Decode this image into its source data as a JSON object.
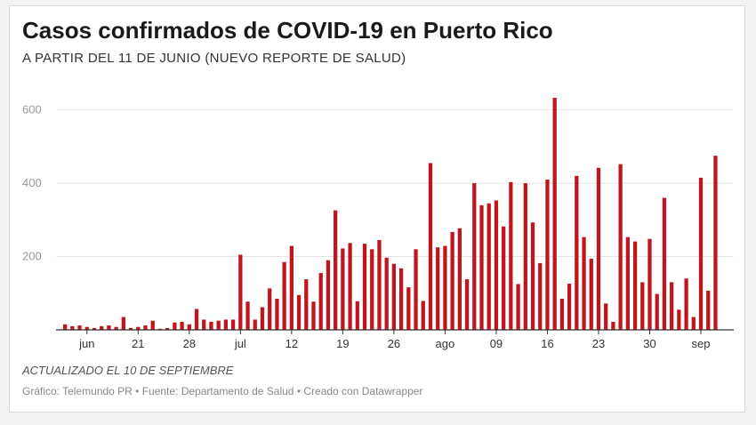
{
  "header": {
    "title": "Casos confirmados de COVID-19 en Puerto Rico",
    "subtitle": "A PARTIR DEL 11 DE JUNIO (NUEVO REPORTE DE SALUD)"
  },
  "footer": {
    "updated": "ACTUALIZADO EL 10 DE SEPTIEMBRE",
    "credit": "Gráfico: Telemundo PR • Fuente: Departamento de Salud • Creado con Datawrapper"
  },
  "colors": {
    "bar": "#c0151c",
    "grid": "#e4e4e4",
    "axis": "#333333"
  },
  "chart_data": {
    "type": "bar",
    "title": "Casos confirmados de COVID-19 en Puerto Rico",
    "subtitle": "A PARTIR DEL 11 DE JUNIO (NUEVO REPORTE DE SALUD)",
    "xlabel": "",
    "ylabel": "",
    "ylim": [
      0,
      650
    ],
    "y_ticks": [
      200,
      400,
      600
    ],
    "grid": true,
    "x_ticks": [
      {
        "label": "jun",
        "category": "2020-06-14"
      },
      {
        "label": "21",
        "category": "2020-06-21"
      },
      {
        "label": "28",
        "category": "2020-06-28"
      },
      {
        "label": "jul",
        "category": "2020-07-05"
      },
      {
        "label": "12",
        "category": "2020-07-12"
      },
      {
        "label": "19",
        "category": "2020-07-19"
      },
      {
        "label": "26",
        "category": "2020-07-26"
      },
      {
        "label": "ago",
        "category": "2020-08-02"
      },
      {
        "label": "09",
        "category": "2020-08-09"
      },
      {
        "label": "16",
        "category": "2020-08-16"
      },
      {
        "label": "23",
        "category": "2020-08-23"
      },
      {
        "label": "30",
        "category": "2020-08-30"
      },
      {
        "label": "sep",
        "category": "2020-09-06"
      }
    ],
    "categories": [
      "2020-06-11",
      "2020-06-12",
      "2020-06-13",
      "2020-06-14",
      "2020-06-15",
      "2020-06-16",
      "2020-06-17",
      "2020-06-18",
      "2020-06-19",
      "2020-06-20",
      "2020-06-21",
      "2020-06-22",
      "2020-06-23",
      "2020-06-24",
      "2020-06-25",
      "2020-06-26",
      "2020-06-27",
      "2020-06-28",
      "2020-06-29",
      "2020-06-30",
      "2020-07-01",
      "2020-07-02",
      "2020-07-03",
      "2020-07-04",
      "2020-07-05",
      "2020-07-06",
      "2020-07-07",
      "2020-07-08",
      "2020-07-09",
      "2020-07-10",
      "2020-07-11",
      "2020-07-12",
      "2020-07-13",
      "2020-07-14",
      "2020-07-15",
      "2020-07-16",
      "2020-07-17",
      "2020-07-18",
      "2020-07-19",
      "2020-07-20",
      "2020-07-21",
      "2020-07-22",
      "2020-07-23",
      "2020-07-24",
      "2020-07-25",
      "2020-07-26",
      "2020-07-27",
      "2020-07-28",
      "2020-07-29",
      "2020-07-30",
      "2020-07-31",
      "2020-08-01",
      "2020-08-02",
      "2020-08-03",
      "2020-08-04",
      "2020-08-05",
      "2020-08-06",
      "2020-08-07",
      "2020-08-08",
      "2020-08-09",
      "2020-08-10",
      "2020-08-11",
      "2020-08-12",
      "2020-08-13",
      "2020-08-14",
      "2020-08-15",
      "2020-08-16",
      "2020-08-17",
      "2020-08-18",
      "2020-08-19",
      "2020-08-20",
      "2020-08-21",
      "2020-08-22",
      "2020-08-23",
      "2020-08-24",
      "2020-08-25",
      "2020-08-26",
      "2020-08-27",
      "2020-08-28",
      "2020-08-29",
      "2020-08-30",
      "2020-08-31",
      "2020-09-01",
      "2020-09-02",
      "2020-09-03",
      "2020-09-04",
      "2020-09-05",
      "2020-09-06",
      "2020-09-07",
      "2020-09-08",
      "2020-09-09",
      "2020-09-10"
    ],
    "series": [
      {
        "values": [
          15,
          10,
          12,
          8,
          5,
          10,
          12,
          8,
          35,
          5,
          8,
          12,
          25,
          3,
          5,
          20,
          22,
          15,
          57,
          28,
          22,
          25,
          28,
          28,
          205,
          77,
          28,
          62,
          113,
          85,
          185,
          229,
          95,
          138,
          77,
          155,
          190,
          326,
          222,
          237,
          78,
          235,
          220,
          245,
          197,
          180,
          168,
          116,
          220,
          79,
          455,
          225,
          229,
          267,
          277,
          138,
          400,
          340,
          345,
          353,
          282,
          403,
          125,
          400,
          293,
          182,
          410,
          633,
          85,
          126,
          420,
          253,
          194,
          442,
          72,
          22,
          452,
          253,
          241,
          130,
          248,
          98,
          360,
          130,
          55,
          140,
          35,
          415,
          107,
          475,
          0,
          0
        ]
      }
    ]
  }
}
